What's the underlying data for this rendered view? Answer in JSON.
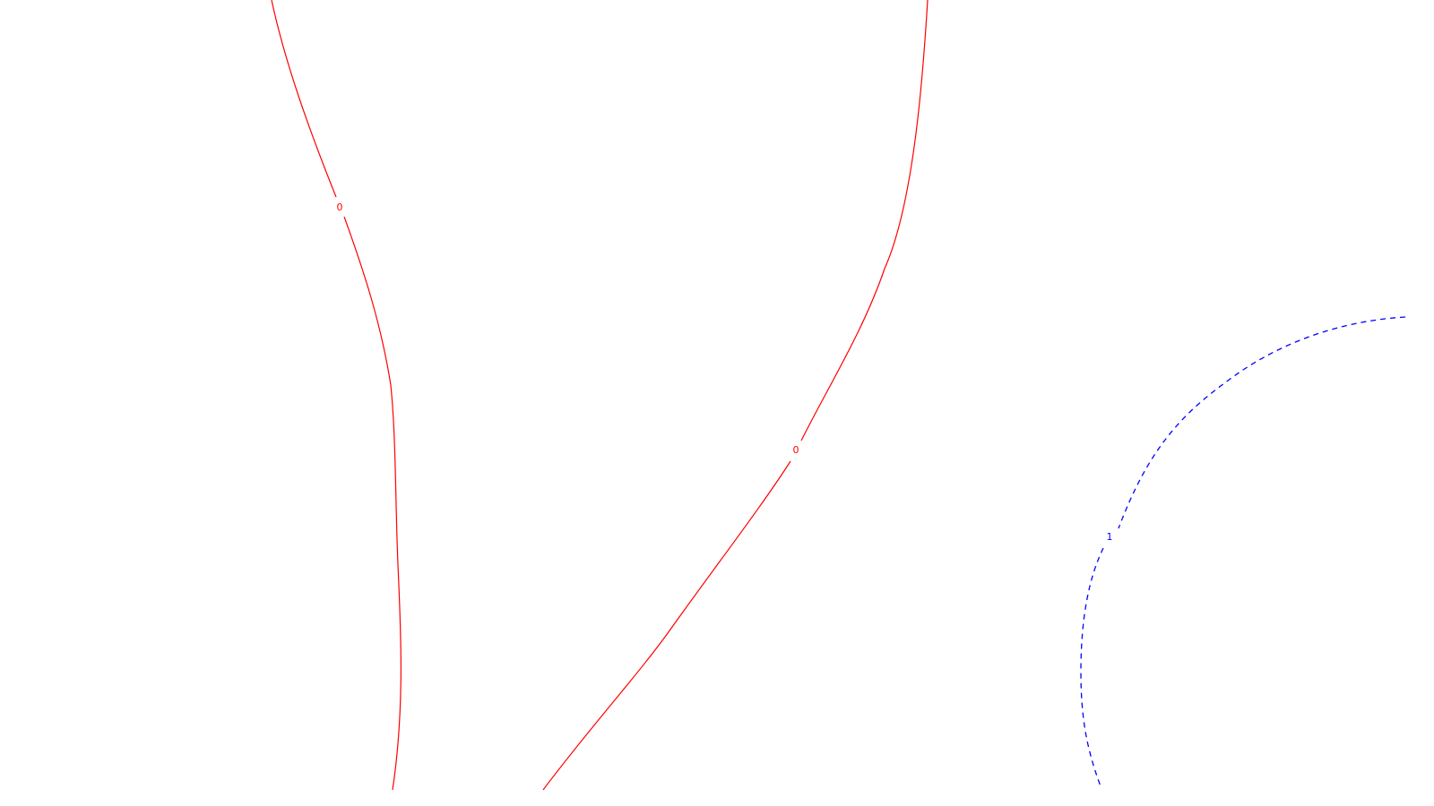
{
  "chart_data": {
    "type": "contour",
    "title": "",
    "xlabel": "",
    "ylabel": "",
    "grid": false,
    "axes_visible": false,
    "series": [
      {
        "level": "0",
        "label_text": "0",
        "color": "#ff0000",
        "line_style": "solid"
      },
      {
        "level": "1",
        "label_text": "1",
        "color": "#0000ff",
        "line_style": "dashed"
      }
    ]
  }
}
